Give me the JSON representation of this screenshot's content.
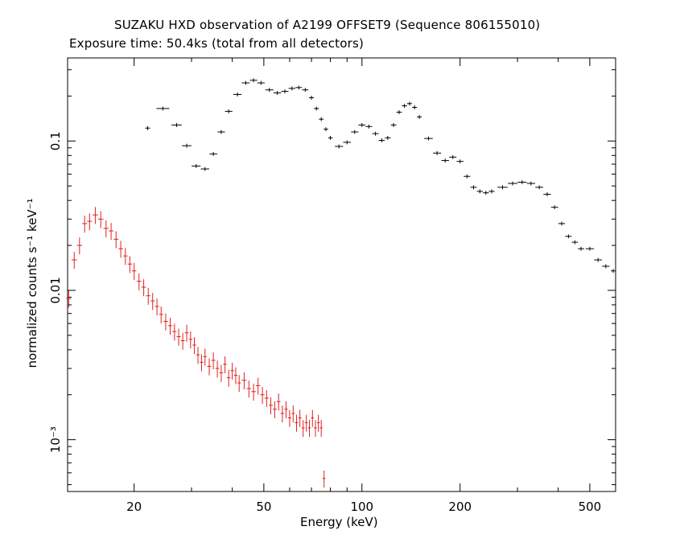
{
  "chart_data": {
    "type": "scatter",
    "title": "SUZAKU HXD observation of A2199 OFFSET9 (Sequence 806155010)",
    "subtitle": "Exposure time: 50.4ks (total from all detectors)",
    "xlabel": "Energy (keV)",
    "ylabel": "normalized counts s⁻¹ keV⁻¹",
    "xscale": "log",
    "yscale": "log",
    "xlim": [
      12.5,
      600
    ],
    "ylim": [
      0.00045,
      0.36
    ],
    "xticks": [
      20,
      50,
      100,
      200,
      500
    ],
    "xtick_labels": [
      "20",
      "50",
      "100",
      "200",
      "500"
    ],
    "yticks": [
      0.001,
      0.01,
      0.1
    ],
    "ytick_labels": [
      "10⁻³",
      "0.01",
      "0.1"
    ],
    "grid": false,
    "series": [
      {
        "color": "#000000",
        "x": [
          22,
          24.5,
          27,
          29,
          31,
          33,
          35,
          37,
          39,
          41.5,
          44,
          46.5,
          49,
          52,
          55,
          58,
          61,
          64,
          67,
          70,
          72.5,
          75,
          77.5,
          80,
          85,
          90,
          95,
          100,
          105,
          110,
          115,
          120,
          125,
          130,
          135,
          140,
          145,
          150,
          160,
          170,
          180,
          190,
          200,
          210,
          220,
          230,
          240,
          250,
          270,
          290,
          310,
          330,
          350,
          370,
          390,
          410,
          430,
          450,
          470,
          500,
          530,
          560,
          590
        ],
        "y": [
          0.122,
          0.165,
          0.128,
          0.093,
          0.068,
          0.065,
          0.082,
          0.115,
          0.158,
          0.205,
          0.245,
          0.255,
          0.245,
          0.22,
          0.21,
          0.215,
          0.225,
          0.228,
          0.22,
          0.195,
          0.165,
          0.14,
          0.12,
          0.105,
          0.092,
          0.098,
          0.115,
          0.128,
          0.125,
          0.112,
          0.101,
          0.105,
          0.128,
          0.156,
          0.172,
          0.178,
          0.168,
          0.145,
          0.104,
          0.083,
          0.074,
          0.078,
          0.073,
          0.058,
          0.049,
          0.046,
          0.045,
          0.046,
          0.049,
          0.052,
          0.053,
          0.052,
          0.049,
          0.044,
          0.036,
          0.028,
          0.023,
          0.021,
          0.019,
          0.019,
          0.016,
          0.0145,
          0.0135
        ]
      },
      {
        "color": "#e02020",
        "x": [
          12.6,
          13.1,
          13.6,
          14.1,
          14.6,
          15.2,
          15.8,
          16.4,
          17.0,
          17.6,
          18.2,
          18.8,
          19.4,
          20.0,
          20.7,
          21.4,
          22.1,
          22.8,
          23.5,
          24.2,
          25.0,
          25.8,
          26.6,
          27.4,
          28.2,
          29.0,
          29.8,
          30.6,
          31.4,
          32.2,
          33.0,
          34.0,
          35.0,
          36.0,
          37.0,
          38.0,
          39.0,
          40.0,
          41.0,
          42.0,
          43.5,
          45.0,
          46.5,
          48.0,
          49.5,
          51.0,
          52.5,
          54.0,
          55.5,
          57.0,
          58.5,
          60.0,
          61.5,
          63.0,
          64.5,
          66.0,
          67.5,
          69.0,
          70.5,
          72.0,
          73.5,
          75.0,
          76.5
        ],
        "y": [
          0.0088,
          0.016,
          0.02,
          0.028,
          0.029,
          0.032,
          0.03,
          0.026,
          0.025,
          0.022,
          0.019,
          0.017,
          0.015,
          0.0135,
          0.0115,
          0.0105,
          0.0092,
          0.0085,
          0.0078,
          0.0069,
          0.0062,
          0.0058,
          0.0053,
          0.0049,
          0.0046,
          0.0052,
          0.0047,
          0.0043,
          0.0037,
          0.0033,
          0.0036,
          0.0031,
          0.0034,
          0.003,
          0.0028,
          0.0032,
          0.0026,
          0.0029,
          0.0027,
          0.0024,
          0.0025,
          0.0022,
          0.0021,
          0.0023,
          0.002,
          0.0019,
          0.0017,
          0.0016,
          0.0018,
          0.0015,
          0.0016,
          0.0014,
          0.0015,
          0.0013,
          0.0014,
          0.0012,
          0.0013,
          0.0012,
          0.0014,
          0.0012,
          0.0013,
          0.0012,
          0.00055
        ]
      }
    ]
  }
}
